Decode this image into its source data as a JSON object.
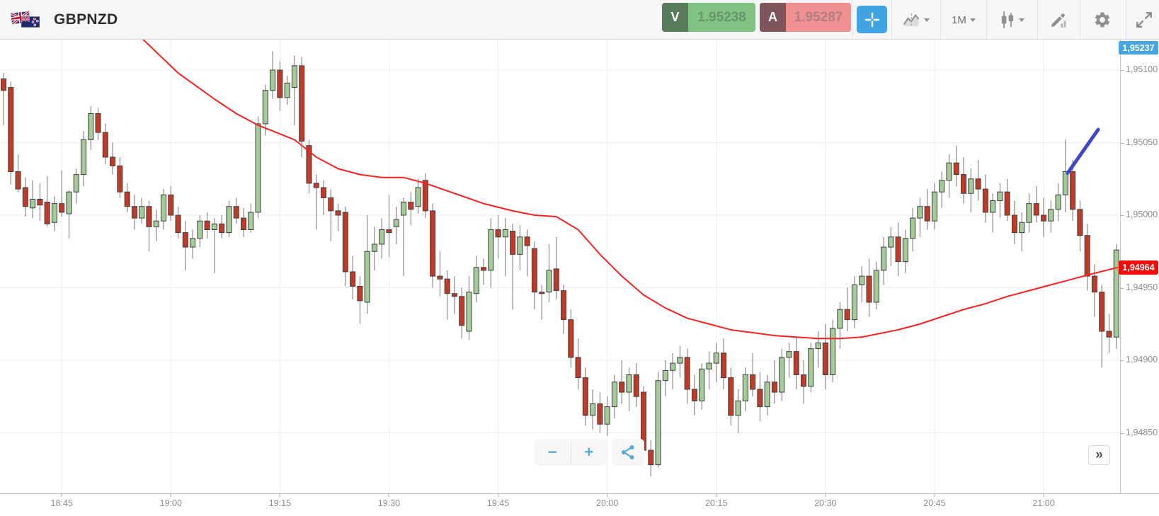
{
  "header": {
    "symbol": "GBPNZD",
    "sell": {
      "label": "V",
      "price": "1.95238"
    },
    "buy": {
      "label": "A",
      "price": "1.95287"
    },
    "timeframe": "1M",
    "icons": [
      "gbp-flag-icon",
      "nzd-flag-icon",
      "crosshair-icon",
      "chart-type-icon",
      "candlestick-style-icon",
      "draw-icon",
      "gear-icon",
      "fullscreen-icon"
    ]
  },
  "controls": {
    "zoom_out": "−",
    "zoom_in": "+",
    "collapse": "»",
    "share": "share-icon"
  },
  "colors": {
    "accent_blue": "#42a3e2",
    "sell_green_dark": "#587c5b",
    "sell_green_light": "#80c382",
    "buy_red_dark": "#7d555b",
    "buy_red_light": "#f09090",
    "candle_up": "#a3cc98",
    "candle_down": "#c13a27",
    "candle_border": "#3d3d3d",
    "ma_line": "#fb2020",
    "trendline": "#3e49c9",
    "badge_current": "#47a5e2",
    "badge_last": "#f20b0b",
    "grid": "#ededed"
  },
  "axis": {
    "current_price_badge": "1,95237",
    "last_price_badge": "1,94964",
    "price_ticks": [
      "1,95100",
      "1,95050",
      "1,95000",
      "1,94950",
      "1,94900",
      "1,94850"
    ],
    "price_tick_values": [
      1.951,
      1.9505,
      1.95,
      1.9495,
      1.949,
      1.9485
    ],
    "time_ticks": [
      "18:45",
      "19:00",
      "19:15",
      "19:30",
      "19:45",
      "20:00",
      "20:15",
      "20:30",
      "20:45",
      "21:00"
    ],
    "time_tick_indices": [
      8,
      23,
      38,
      53,
      68,
      83,
      98,
      113,
      128,
      143
    ]
  },
  "chart_data": {
    "type": "candlestick",
    "symbol": "GBPNZD",
    "interval": "1m",
    "title": "GBPNZD 1-minute candlestick chart with red moving-average overlay and blue trendline drawing",
    "visible_time_range": [
      "18:37",
      "21:10"
    ],
    "ylim": [
      1.9482,
      1.95125
    ],
    "grid": true,
    "candles_ohlc": [
      [
        1.95094,
        1.95098,
        1.95062,
        1.95086
      ],
      [
        1.95088,
        1.95092,
        1.95021,
        1.9503
      ],
      [
        1.9503,
        1.95042,
        1.95016,
        1.95018
      ],
      [
        1.95019,
        1.95026,
        1.94999,
        1.95006
      ],
      [
        1.95005,
        1.95024,
        1.94998,
        1.95011
      ],
      [
        1.95011,
        1.95022,
        1.94996,
        1.95007
      ],
      [
        1.95009,
        1.95027,
        1.94992,
        1.94994
      ],
      [
        1.94995,
        1.95013,
        1.94989,
        1.95008
      ],
      [
        1.95008,
        1.95031,
        1.94999,
        1.95002
      ],
      [
        1.95001,
        1.95017,
        1.94984,
        1.95016
      ],
      [
        1.95016,
        1.95032,
        1.95008,
        1.95028
      ],
      [
        1.95028,
        1.95058,
        1.9502,
        1.95052
      ],
      [
        1.95052,
        1.95075,
        1.95045,
        1.9507
      ],
      [
        1.9507,
        1.95074,
        1.95052,
        1.95057
      ],
      [
        1.95057,
        1.95063,
        1.95035,
        1.9504
      ],
      [
        1.9504,
        1.9505,
        1.95028,
        1.95034
      ],
      [
        1.95034,
        1.9504,
        1.95012,
        1.95016
      ],
      [
        1.95016,
        1.95022,
        1.95002,
        1.95006
      ],
      [
        1.95006,
        1.95014,
        1.9499,
        1.94998
      ],
      [
        1.94998,
        1.95012,
        1.94994,
        1.95006
      ],
      [
        1.95006,
        1.9501,
        1.94975,
        1.94992
      ],
      [
        1.94992,
        1.95004,
        1.94982,
        1.94996
      ],
      [
        1.94996,
        1.95018,
        1.9499,
        1.95014
      ],
      [
        1.95014,
        1.9502,
        1.94996,
        1.95
      ],
      [
        1.95,
        1.95006,
        1.94984,
        1.94988
      ],
      [
        1.94988,
        1.94996,
        1.94962,
        1.94978
      ],
      [
        1.94978,
        1.9499,
        1.9497,
        1.94984
      ],
      [
        1.94984,
        1.95,
        1.94978,
        1.94996
      ],
      [
        1.94996,
        1.95002,
        1.94984,
        1.9499
      ],
      [
        1.9499,
        1.94998,
        1.9496,
        1.94994
      ],
      [
        1.94994,
        1.95,
        1.94984,
        1.94988
      ],
      [
        1.94988,
        1.9501,
        1.94985,
        1.95006
      ],
      [
        1.95006,
        1.95012,
        1.94994,
        1.94998
      ],
      [
        1.94998,
        1.95005,
        1.94985,
        1.9499
      ],
      [
        1.9499,
        1.95008,
        1.94988,
        1.95002
      ],
      [
        1.95002,
        1.95068,
        1.94998,
        1.95063
      ],
      [
        1.95063,
        1.9509,
        1.95055,
        1.95086
      ],
      [
        1.95086,
        1.95113,
        1.9508,
        1.951
      ],
      [
        1.951,
        1.95106,
        1.95072,
        1.95081
      ],
      [
        1.95081,
        1.95096,
        1.95076,
        1.95091
      ],
      [
        1.95088,
        1.9511,
        1.95062,
        1.95103
      ],
      [
        1.95103,
        1.95109,
        1.9504,
        1.95051
      ],
      [
        1.95048,
        1.95052,
        1.95015,
        1.95022
      ],
      [
        1.95022,
        1.95028,
        1.9499,
        1.95019
      ],
      [
        1.95019,
        1.95024,
        1.95,
        1.95012
      ],
      [
        1.95012,
        1.95018,
        1.94982,
        1.95003
      ],
      [
        1.95003,
        1.95008,
        1.94989,
        1.95
      ],
      [
        1.95002,
        1.95006,
        1.94951,
        1.94961
      ],
      [
        1.94961,
        1.94972,
        1.94942,
        1.94951
      ],
      [
        1.94951,
        1.94958,
        1.94925,
        1.94941
      ],
      [
        1.9494,
        1.95,
        1.94932,
        1.94975
      ],
      [
        1.94975,
        1.94992,
        1.94962,
        1.9498
      ],
      [
        1.9498,
        1.94998,
        1.9497,
        1.9499
      ],
      [
        1.9499,
        1.95014,
        1.94971,
        1.94988
      ],
      [
        1.94992,
        1.95006,
        1.9498,
        1.94997
      ],
      [
        1.95,
        1.95012,
        1.94958,
        1.95009
      ],
      [
        1.95009,
        1.95016,
        1.94993,
        1.95004
      ],
      [
        1.95006,
        1.95025,
        1.95001,
        1.95019
      ],
      [
        1.95024,
        1.95029,
        1.94998,
        1.95003
      ],
      [
        1.95003,
        1.95008,
        1.9495,
        1.94958
      ],
      [
        1.94958,
        1.94975,
        1.94944,
        1.94956
      ],
      [
        1.94956,
        1.94962,
        1.94928,
        1.94946
      ],
      [
        1.94946,
        1.94958,
        1.94932,
        1.94944
      ],
      [
        1.94944,
        1.9495,
        1.94915,
        1.94924
      ],
      [
        1.9492,
        1.94958,
        1.94914,
        1.94947
      ],
      [
        1.94946,
        1.94972,
        1.9494,
        1.94964
      ],
      [
        1.94964,
        1.9497,
        1.94952,
        1.94962
      ],
      [
        1.94962,
        1.94998,
        1.9495,
        1.9499
      ],
      [
        1.9499,
        1.95,
        1.9497,
        1.94985
      ],
      [
        1.94985,
        1.94998,
        1.94958,
        1.9499
      ],
      [
        1.94989,
        1.94994,
        1.94935,
        1.94973
      ],
      [
        1.94973,
        1.94993,
        1.94962,
        1.94985
      ],
      [
        1.94985,
        1.9499,
        1.94958,
        1.94979
      ],
      [
        1.94977,
        1.94982,
        1.94935,
        1.94947
      ],
      [
        1.94947,
        1.94952,
        1.94928,
        1.94946
      ],
      [
        1.94947,
        1.9498,
        1.9494,
        1.94962
      ],
      [
        1.94963,
        1.94985,
        1.94942,
        1.94948
      ],
      [
        1.94948,
        1.94952,
        1.94918,
        1.94928
      ],
      [
        1.94928,
        1.94935,
        1.94895,
        1.94902
      ],
      [
        1.94902,
        1.94915,
        1.9488,
        1.94888
      ],
      [
        1.94888,
        1.94895,
        1.94855,
        1.94862
      ],
      [
        1.94862,
        1.9488,
        1.94852,
        1.9487
      ],
      [
        1.9487,
        1.94878,
        1.9485,
        1.94856
      ],
      [
        1.94856,
        1.94875,
        1.94848,
        1.94868
      ],
      [
        1.94868,
        1.9489,
        1.9486,
        1.94885
      ],
      [
        1.94885,
        1.949,
        1.9487,
        1.94878
      ],
      [
        1.94878,
        1.94895,
        1.94865,
        1.9489
      ],
      [
        1.9489,
        1.94898,
        1.94868,
        1.94875
      ],
      [
        1.94878,
        1.94882,
        1.9483,
        1.94838
      ],
      [
        1.94838,
        1.94845,
        1.9482,
        1.94828
      ],
      [
        1.94828,
        1.94892,
        1.94826,
        1.94886
      ],
      [
        1.94886,
        1.949,
        1.94875,
        1.94893
      ],
      [
        1.94893,
        1.94905,
        1.9488,
        1.94898
      ],
      [
        1.94898,
        1.9491,
        1.94888,
        1.94902
      ],
      [
        1.94902,
        1.94908,
        1.9487,
        1.9488
      ],
      [
        1.9488,
        1.9489,
        1.94862,
        1.94872
      ],
      [
        1.94872,
        1.94898,
        1.94866,
        1.94894
      ],
      [
        1.94894,
        1.94906,
        1.9488,
        1.94898
      ],
      [
        1.94898,
        1.94912,
        1.94885,
        1.94905
      ],
      [
        1.94905,
        1.94915,
        1.9488,
        1.94888
      ],
      [
        1.94888,
        1.94895,
        1.94855,
        1.94862
      ],
      [
        1.94862,
        1.9488,
        1.9485,
        1.94872
      ],
      [
        1.94872,
        1.94895,
        1.94865,
        1.9489
      ],
      [
        1.9489,
        1.94905,
        1.94875,
        1.9488
      ],
      [
        1.9488,
        1.94892,
        1.94858,
        1.94868
      ],
      [
        1.94868,
        1.9489,
        1.94862,
        1.94885
      ],
      [
        1.94885,
        1.949,
        1.9487,
        1.94878
      ],
      [
        1.94878,
        1.94908,
        1.94872,
        1.94902
      ],
      [
        1.94902,
        1.94912,
        1.94888,
        1.94906
      ],
      [
        1.94906,
        1.94916,
        1.9488,
        1.9489
      ],
      [
        1.9489,
        1.949,
        1.9487,
        1.94882
      ],
      [
        1.94882,
        1.94912,
        1.94878,
        1.94908
      ],
      [
        1.94908,
        1.9492,
        1.94895,
        1.94912
      ],
      [
        1.94912,
        1.94925,
        1.9488,
        1.9489
      ],
      [
        1.9489,
        1.94928,
        1.94885,
        1.94922
      ],
      [
        1.94922,
        1.9494,
        1.94908,
        1.94935
      ],
      [
        1.94935,
        1.9495,
        1.9492,
        1.94928
      ],
      [
        1.94928,
        1.94958,
        1.94922,
        1.94952
      ],
      [
        1.94952,
        1.94965,
        1.9494,
        1.94958
      ],
      [
        1.94958,
        1.9497,
        1.9493,
        1.9494
      ],
      [
        1.9494,
        1.94968,
        1.94935,
        1.94962
      ],
      [
        1.94962,
        1.94985,
        1.94952,
        1.94978
      ],
      [
        1.94978,
        1.94992,
        1.94965,
        1.94985
      ],
      [
        1.94985,
        1.94995,
        1.94958,
        1.94968
      ],
      [
        1.94968,
        1.9499,
        1.9496,
        1.94984
      ],
      [
        1.94984,
        1.95005,
        1.94975,
        1.94998
      ],
      [
        1.94998,
        1.95012,
        1.94985,
        1.95006
      ],
      [
        1.95006,
        1.95018,
        1.9499,
        1.94996
      ],
      [
        1.94996,
        1.95022,
        1.9499,
        1.95016
      ],
      [
        1.95016,
        1.9503,
        1.95005,
        1.95024
      ],
      [
        1.95024,
        1.95042,
        1.95012,
        1.95036
      ],
      [
        1.95036,
        1.95048,
        1.9502,
        1.95028
      ],
      [
        1.95028,
        1.9504,
        1.95008,
        1.95015
      ],
      [
        1.95015,
        1.95032,
        1.95002,
        1.95025
      ],
      [
        1.95025,
        1.95038,
        1.9501,
        1.95018
      ],
      [
        1.95018,
        1.95028,
        1.94995,
        1.95002
      ],
      [
        1.95002,
        1.95015,
        1.94988,
        1.9501
      ],
      [
        1.9501,
        1.95022,
        1.94998,
        1.95016
      ],
      [
        1.95016,
        1.95025,
        1.94996,
        1.95
      ],
      [
        1.95,
        1.9501,
        1.9498,
        1.94988
      ],
      [
        1.94988,
        1.95002,
        1.94975,
        1.94995
      ],
      [
        1.94995,
        1.95015,
        1.94988,
        1.95008
      ],
      [
        1.95008,
        1.9502,
        1.94995,
        1.95
      ],
      [
        1.95,
        1.95012,
        1.94985,
        1.94996
      ],
      [
        1.94996,
        1.9501,
        1.94988,
        1.95004
      ],
      [
        1.95004,
        1.95022,
        1.94996,
        1.95014
      ],
      [
        1.95014,
        1.95052,
        1.95002,
        1.9503
      ],
      [
        1.9503,
        1.95038,
        1.94996,
        1.95004
      ],
      [
        1.95004,
        1.9501,
        1.94975,
        1.94986
      ],
      [
        1.94986,
        1.94994,
        1.94948,
        1.94958
      ],
      [
        1.94958,
        1.94966,
        1.9493,
        1.94947
      ],
      [
        1.94947,
        1.94952,
        1.94895,
        1.9492
      ],
      [
        1.9492,
        1.94932,
        1.94905,
        1.94916
      ],
      [
        1.94916,
        1.9498,
        1.94908,
        1.94976
      ]
    ],
    "ma_line": [
      [
        19,
        1.95122
      ],
      [
        24,
        1.95098
      ],
      [
        29,
        1.9508
      ],
      [
        32,
        1.9507
      ],
      [
        35,
        1.95062
      ],
      [
        37,
        1.95058
      ],
      [
        40,
        1.95052
      ],
      [
        43,
        1.9504
      ],
      [
        46,
        1.95032
      ],
      [
        49,
        1.95028
      ],
      [
        52,
        1.95026
      ],
      [
        55,
        1.95026
      ],
      [
        58,
        1.95022
      ],
      [
        62,
        1.95015
      ],
      [
        66,
        1.95008
      ],
      [
        70,
        1.95003
      ],
      [
        73,
        1.95
      ],
      [
        76,
        1.94999
      ],
      [
        79,
        1.9499
      ],
      [
        82,
        1.94973
      ],
      [
        85,
        1.94958
      ],
      [
        88,
        1.94945
      ],
      [
        91,
        1.94936
      ],
      [
        94,
        1.94929
      ],
      [
        97,
        1.94925
      ],
      [
        100,
        1.94921
      ],
      [
        103,
        1.94919
      ],
      [
        106,
        1.94917
      ],
      [
        109,
        1.94916
      ],
      [
        112,
        1.94915
      ],
      [
        115,
        1.94915
      ],
      [
        118,
        1.94916
      ],
      [
        120,
        1.94918
      ],
      [
        123,
        1.94921
      ],
      [
        126,
        1.94925
      ],
      [
        129,
        1.9493
      ],
      [
        132,
        1.94935
      ],
      [
        135,
        1.94939
      ],
      [
        138,
        1.94944
      ],
      [
        141,
        1.94948
      ],
      [
        144,
        1.94952
      ],
      [
        147,
        1.94956
      ],
      [
        150,
        1.9496
      ],
      [
        153.2,
        1.94964
      ]
    ],
    "trendline": {
      "from": {
        "index": 146.3,
        "price": 1.95029
      },
      "to": {
        "index": 150.5,
        "price": 1.95059
      }
    }
  }
}
